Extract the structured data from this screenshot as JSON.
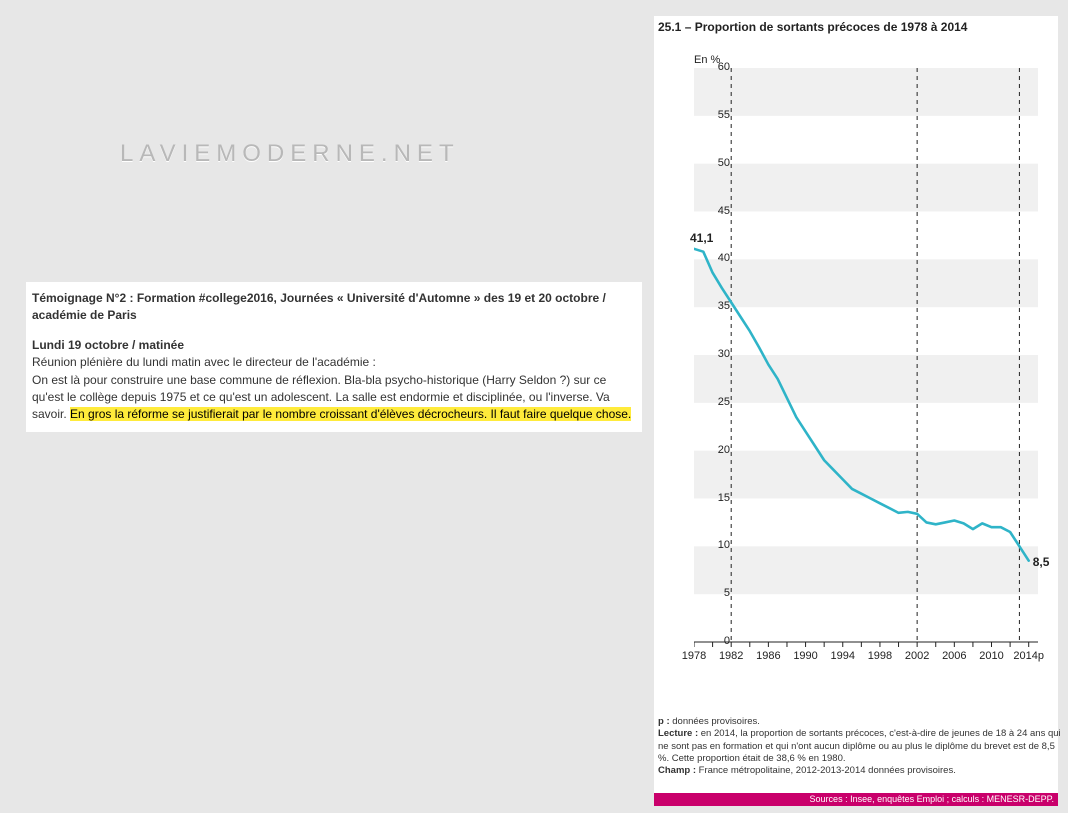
{
  "watermark": "LAVIEMODERNE.NET",
  "text": {
    "title": "Témoignage N°2 : Formation #college2016, Journées « Université d'Automne » des 19 et 20 octobre / académie de Paris",
    "subtitle": "Lundi 19 octobre / matinée",
    "body_plain": "Réunion plénière du lundi matin avec le directeur de l'académie :\nOn est là pour construire une base commune de réflexion. Bla-bla psycho-historique (Harry Seldon ?) sur ce qu'est le collège depuis 1975 et ce qu'est un adolescent. La salle est endormie et disciplinée, ou l'inverse. Va savoir. ",
    "body_highlight": "En gros la réforme se justifierait par le nombre croissant d'élèves décrocheurs. Il faut faire quelque chose."
  },
  "chart": {
    "title": "25.1 –   Proportion de sortants précoces de 1978 à 2014",
    "ylabel": "En %",
    "type": "line",
    "line_color": "#2fb4c8",
    "line_width": 2.6,
    "background_color": "#ffffff",
    "band_color": "#f0f0f0",
    "axis_color": "#222222",
    "dash_color": "#222222",
    "ylim": [
      0,
      60
    ],
    "ytick_step": 5,
    "xlim": [
      1978,
      2015
    ],
    "xticks": [
      1978,
      1982,
      1986,
      1990,
      1994,
      1998,
      2002,
      2006,
      2010,
      "2014p"
    ],
    "dashed_verticals_x": [
      1982,
      2002,
      2013
    ],
    "start_label": "41,1",
    "end_label": "8,5",
    "data": [
      {
        "x": 1978,
        "y": 41.1
      },
      {
        "x": 1979,
        "y": 40.8
      },
      {
        "x": 1980,
        "y": 38.6
      },
      {
        "x": 1981,
        "y": 37.0
      },
      {
        "x": 1982,
        "y": 35.5
      },
      {
        "x": 1983,
        "y": 34.0
      },
      {
        "x": 1984,
        "y": 32.5
      },
      {
        "x": 1985,
        "y": 30.8
      },
      {
        "x": 1986,
        "y": 29.0
      },
      {
        "x": 1987,
        "y": 27.5
      },
      {
        "x": 1988,
        "y": 25.5
      },
      {
        "x": 1989,
        "y": 23.5
      },
      {
        "x": 1990,
        "y": 22.0
      },
      {
        "x": 1991,
        "y": 20.5
      },
      {
        "x": 1992,
        "y": 19.0
      },
      {
        "x": 1993,
        "y": 18.0
      },
      {
        "x": 1994,
        "y": 17.0
      },
      {
        "x": 1995,
        "y": 16.0
      },
      {
        "x": 1996,
        "y": 15.5
      },
      {
        "x": 1997,
        "y": 15.0
      },
      {
        "x": 1998,
        "y": 14.5
      },
      {
        "x": 1999,
        "y": 14.0
      },
      {
        "x": 2000,
        "y": 13.5
      },
      {
        "x": 2001,
        "y": 13.6
      },
      {
        "x": 2002,
        "y": 13.4
      },
      {
        "x": 2003,
        "y": 12.5
      },
      {
        "x": 2004,
        "y": 12.3
      },
      {
        "x": 2005,
        "y": 12.5
      },
      {
        "x": 2006,
        "y": 12.7
      },
      {
        "x": 2007,
        "y": 12.4
      },
      {
        "x": 2008,
        "y": 11.8
      },
      {
        "x": 2009,
        "y": 12.4
      },
      {
        "x": 2010,
        "y": 12.0
      },
      {
        "x": 2011,
        "y": 12.0
      },
      {
        "x": 2012,
        "y": 11.5
      },
      {
        "x": 2013,
        "y": 10.0
      },
      {
        "x": 2014,
        "y": 8.5
      }
    ],
    "foot_p": "p : ",
    "foot_p_txt": "données provisoires.",
    "foot_lecture": "Lecture : ",
    "foot_lecture_txt": "en 2014, la proportion de sortants précoces, c'est-à-dire de jeunes de 18 à 24 ans qui ne sont pas en formation et qui n'ont aucun diplôme ou au plus le diplôme du brevet est de 8,5 %. Cette proportion était de 38,6 % en 1980.",
    "foot_champ": "Champ : ",
    "foot_champ_txt": "France métropolitaine, 2012-2013-2014 données provisoires.",
    "source": "Sources : Insee, enquêtes Emploi ; calculs : MENESR-DEPP."
  },
  "style": {
    "page_bg": "#e7e7e7",
    "highlight_bg": "#ffeb3b",
    "src_bar_bg": "#c9006b",
    "text_fontsize": 12,
    "title_fontsize": 12,
    "foot_fontsize": 9.5
  }
}
